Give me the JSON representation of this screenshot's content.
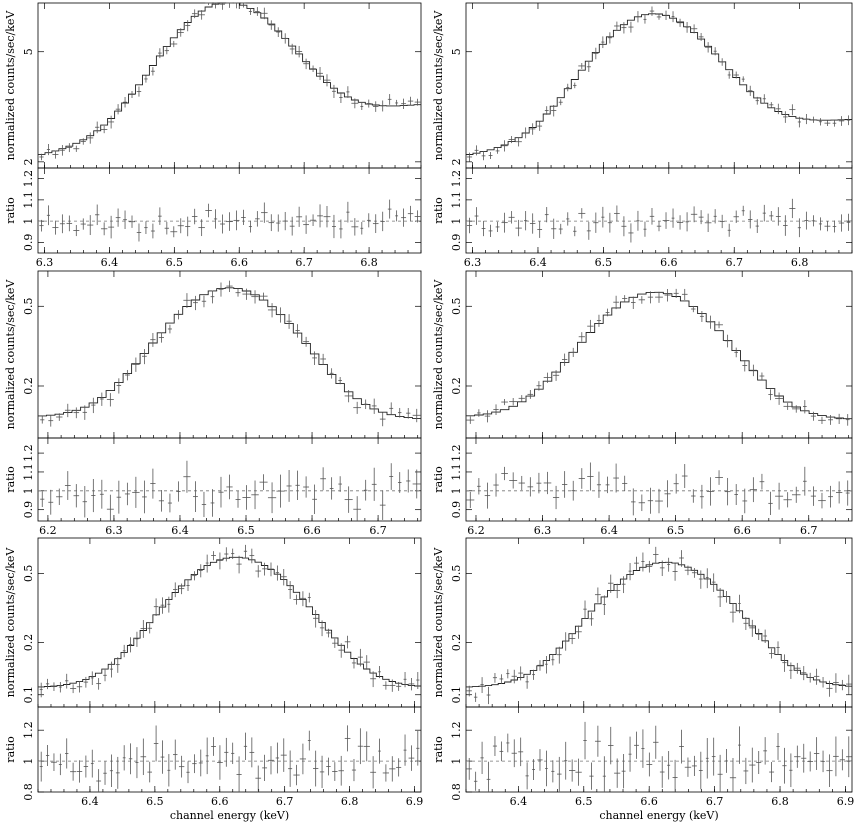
{
  "figure": {
    "layout": "3 rows x 2 columns of spectral fits (top: spectrum, bottom: ratio)"
  },
  "chart_data": [
    {
      "type": "line",
      "position": "row1-left",
      "x_tick_labels": [
        "6.3",
        "6.4",
        "6.5",
        "6.6",
        "6.7",
        "6.8"
      ],
      "xlim": [
        6.29,
        6.88
      ],
      "xlabel": "",
      "top": {
        "ylabel": "normalized counts/sec/keV",
        "yscale": "log",
        "ylim": [
          1.9,
          7.5
        ],
        "ytick_labels": [
          "2",
          "5"
        ],
        "ytick_values": [
          2,
          5
        ],
        "model": {
          "center": 6.58,
          "sigma": 0.085,
          "peak": 7.0,
          "base": 2.1,
          "slope": 0.9
        }
      },
      "bottom": {
        "ylabel": "ratio",
        "ylim": [
          0.85,
          1.25
        ],
        "ytick_labels": [
          "0.9",
          "1",
          "1.1",
          "1.2"
        ],
        "ytick_values": [
          0.9,
          1.0,
          1.1,
          1.2
        ],
        "ref": 1.0
      },
      "data": {
        "n": 55,
        "spread": 0.05,
        "seed": 11
      }
    },
    {
      "type": "line",
      "position": "row1-right",
      "x_tick_labels": [
        "6.3",
        "6.4",
        "6.5",
        "6.6",
        "6.7",
        "6.8"
      ],
      "xlim": [
        6.29,
        6.88
      ],
      "xlabel": "",
      "top": {
        "ylabel": "normalized counts/sec/keV",
        "yscale": "log",
        "ylim": [
          1.9,
          7.5
        ],
        "ytick_labels": [
          "2",
          "5"
        ],
        "ytick_values": [
          2,
          5
        ],
        "model": {
          "center": 6.575,
          "sigma": 0.085,
          "peak": 6.5,
          "base": 2.1,
          "slope": 0.6
        }
      },
      "bottom": {
        "ylabel": "ratio",
        "ylim": [
          0.85,
          1.25
        ],
        "ytick_labels": [
          "0.9",
          "1",
          "1.1",
          "1.2"
        ],
        "ytick_values": [
          0.9,
          1.0,
          1.1,
          1.2
        ],
        "ref": 1.0
      },
      "data": {
        "n": 55,
        "spread": 0.045,
        "seed": 23
      }
    },
    {
      "type": "line",
      "position": "row2-left",
      "x_tick_labels": [
        "6.2",
        "6.3",
        "6.4",
        "6.5",
        "6.6",
        "6.7"
      ],
      "xlim": [
        6.185,
        6.765
      ],
      "xlabel": "",
      "top": {
        "ylabel": "normalized counts/sec/keV",
        "yscale": "log",
        "ylim": [
          0.11,
          0.75
        ],
        "ytick_labels": [
          "0.2",
          "0.5"
        ],
        "ytick_values": [
          0.2,
          0.5
        ],
        "model": {
          "center": 6.475,
          "sigma": 0.085,
          "peak": 0.62,
          "base": 0.14,
          "slope": -0.05
        }
      },
      "bottom": {
        "ylabel": "ratio",
        "ylim": [
          0.84,
          1.28
        ],
        "ytick_labels": [
          "0.9",
          "1",
          "1.1",
          "1.2"
        ],
        "ytick_values": [
          0.9,
          1.0,
          1.1,
          1.2
        ],
        "ref": 1.0
      },
      "data": {
        "n": 45,
        "spread": 0.08,
        "seed": 37
      }
    },
    {
      "type": "line",
      "position": "row2-right",
      "x_tick_labels": [
        "6.2",
        "6.3",
        "6.4",
        "6.5",
        "6.6",
        "6.7"
      ],
      "xlim": [
        6.185,
        6.765
      ],
      "xlabel": "",
      "top": {
        "ylabel": "normalized counts/sec/keV",
        "yscale": "log",
        "ylim": [
          0.11,
          0.75
        ],
        "ytick_labels": [
          "0.2",
          "0.5"
        ],
        "ytick_values": [
          0.2,
          0.5
        ],
        "model": {
          "center": 6.47,
          "sigma": 0.085,
          "peak": 0.59,
          "base": 0.14,
          "slope": -0.05
        }
      },
      "bottom": {
        "ylabel": "ratio",
        "ylim": [
          0.84,
          1.28
        ],
        "ytick_labels": [
          "0.9",
          "1",
          "1.1",
          "1.2"
        ],
        "ytick_values": [
          0.9,
          1.0,
          1.1,
          1.2
        ],
        "ref": 1.0
      },
      "data": {
        "n": 45,
        "spread": 0.07,
        "seed": 41
      }
    },
    {
      "type": "line",
      "position": "row3-left",
      "x_tick_labels": [
        "6.4",
        "6.5",
        "6.6",
        "6.7",
        "6.8",
        "6.9"
      ],
      "xlim": [
        6.32,
        6.91
      ],
      "xlabel": "channel energy (keV)",
      "top": {
        "ylabel": "normalized counts/sec/keV",
        "yscale": "log",
        "ylim": [
          0.085,
          0.8
        ],
        "ytick_labels": [
          "0.1",
          "0.2",
          "0.5"
        ],
        "ytick_values": [
          0.1,
          0.2,
          0.5
        ],
        "model": {
          "center": 6.625,
          "sigma": 0.085,
          "peak": 0.62,
          "base": 0.11,
          "slope": 0.0
        }
      },
      "bottom": {
        "ylabel": "ratio",
        "ylim": [
          0.8,
          1.35
        ],
        "ytick_labels": [
          "0.8",
          "1",
          "1.2"
        ],
        "ytick_values": [
          0.8,
          1.0,
          1.2
        ],
        "ref": 1.0
      },
      "data": {
        "n": 60,
        "spread": 0.11,
        "seed": 53
      }
    },
    {
      "type": "line",
      "position": "row3-right",
      "x_tick_labels": [
        "6.4",
        "6.5",
        "6.6",
        "6.7",
        "6.8",
        "6.9"
      ],
      "xlim": [
        6.32,
        6.91
      ],
      "xlabel": "channel energy (keV)",
      "top": {
        "ylabel": "normalized counts/sec/keV",
        "yscale": "log",
        "ylim": [
          0.085,
          0.8
        ],
        "ytick_labels": [
          "0.1",
          "0.2",
          "0.5"
        ],
        "ytick_values": [
          0.1,
          0.2,
          0.5
        ],
        "model": {
          "center": 6.625,
          "sigma": 0.085,
          "peak": 0.58,
          "base": 0.11,
          "slope": 0.0
        }
      },
      "bottom": {
        "ylabel": "ratio",
        "ylim": [
          0.8,
          1.35
        ],
        "ytick_labels": [
          "0.8",
          "1",
          "1.2"
        ],
        "ytick_values": [
          0.8,
          1.0,
          1.2
        ],
        "ref": 1.0
      },
      "data": {
        "n": 60,
        "spread": 0.12,
        "seed": 67
      }
    }
  ]
}
